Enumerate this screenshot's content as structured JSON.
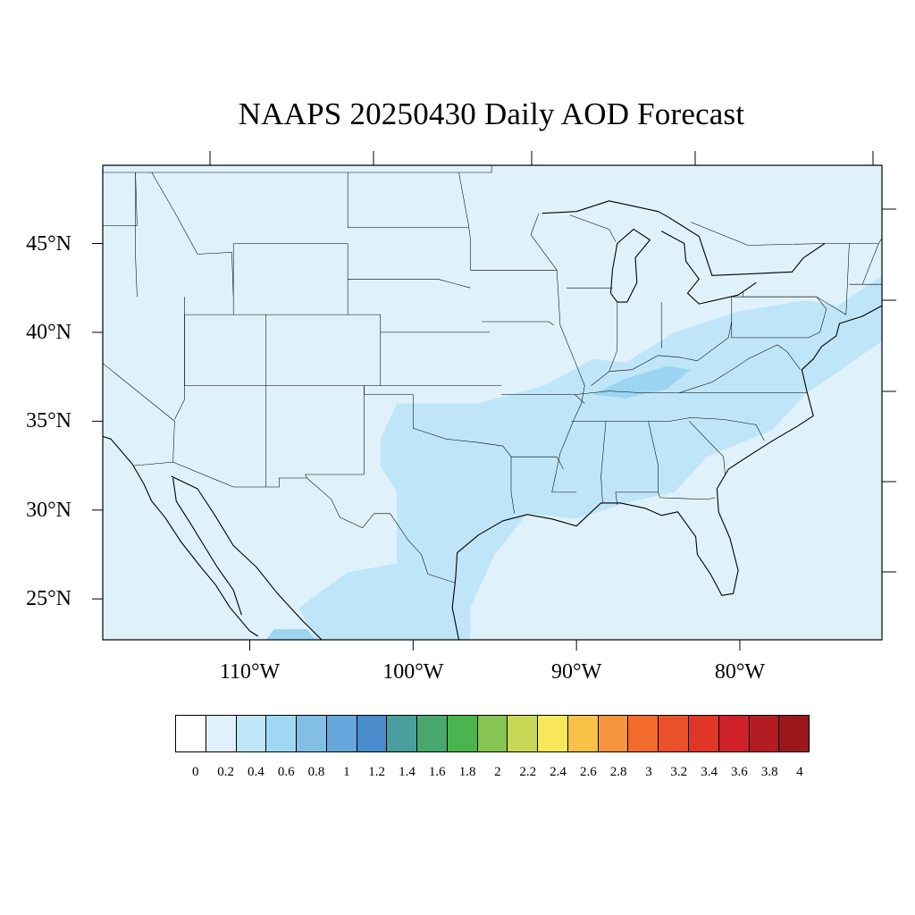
{
  "title": "NAAPS 20250430 Daily AOD Forecast",
  "map": {
    "extent": {
      "lon": [
        -119,
        -71.3
      ],
      "lat": [
        22.7,
        49.4
      ]
    },
    "lat_ticks": [
      {
        "lat": 45,
        "label": "45°N"
      },
      {
        "lat": 40,
        "label": "40°N"
      },
      {
        "lat": 35,
        "label": "35°N"
      },
      {
        "lat": 30,
        "label": "30°N"
      },
      {
        "lat": 25,
        "label": "25°N"
      }
    ],
    "lon_ticks": [
      {
        "lon": -110,
        "label": "110°W"
      },
      {
        "lon": -100,
        "label": "100°W"
      },
      {
        "lon": -90,
        "label": "90°W"
      },
      {
        "lon": -80,
        "label": "80°W"
      }
    ],
    "background_class_color": "#dff2fb",
    "aod_regions": [
      {
        "name": "plains-gulf",
        "aod_class": "0.2-0.4",
        "color": "#bfe6f8",
        "polygon": [
          [
            -101,
            36
          ],
          [
            -96,
            36
          ],
          [
            -92,
            37
          ],
          [
            -89,
            38.5
          ],
          [
            -87,
            38.3
          ],
          [
            -84,
            40
          ],
          [
            -80,
            41.2
          ],
          [
            -76,
            41.8
          ],
          [
            -74,
            41.5
          ],
          [
            -71.3,
            43.2
          ],
          [
            -71.3,
            39.5
          ],
          [
            -76,
            36.5
          ],
          [
            -78,
            34.5
          ],
          [
            -82,
            33
          ],
          [
            -84,
            31
          ],
          [
            -87,
            30.4
          ],
          [
            -90,
            29.5
          ],
          [
            -93,
            29.8
          ],
          [
            -95,
            27.5
          ],
          [
            -96.5,
            24.5
          ],
          [
            -96.5,
            22.7
          ],
          [
            -106,
            22.7
          ],
          [
            -107,
            24.5
          ],
          [
            -104,
            26.5
          ],
          [
            -101,
            27
          ],
          [
            -101,
            31
          ],
          [
            -102,
            32.5
          ],
          [
            -102,
            34
          ],
          [
            -101,
            36
          ]
        ]
      },
      {
        "name": "ohio-valley",
        "aod_class": "0.4-0.6",
        "color": "#9bd5f2",
        "polygon": [
          [
            -89,
            36.5
          ],
          [
            -87,
            37.4
          ],
          [
            -84.5,
            38.1
          ],
          [
            -83,
            37.9
          ],
          [
            -84.5,
            36.8
          ],
          [
            -87,
            36.3
          ],
          [
            -89,
            36.5
          ]
        ]
      },
      {
        "name": "mexico-south",
        "aod_class": "0.4-0.6",
        "color": "#9bd5f2",
        "polygon": [
          [
            -109,
            22.7
          ],
          [
            -106,
            22.7
          ],
          [
            -106.5,
            23.3
          ],
          [
            -108.5,
            23.3
          ],
          [
            -109,
            22.7
          ]
        ]
      }
    ]
  },
  "colorbar": {
    "labels": [
      "0",
      "0.2",
      "0.4",
      "0.6",
      "0.8",
      "1",
      "1.2",
      "1.4",
      "1.6",
      "1.8",
      "2",
      "2.2",
      "2.4",
      "2.6",
      "2.8",
      "3",
      "3.2",
      "3.4",
      "3.6",
      "3.8",
      "4"
    ],
    "colors": [
      "#ffffff",
      "#dff2fb",
      "#bfe6f8",
      "#a0d7f3",
      "#82bfe5",
      "#66a8dc",
      "#4a8ccc",
      "#4a9e9e",
      "#48a86e",
      "#4ab54c",
      "#86c553",
      "#c7d856",
      "#f7e85a",
      "#f8c148",
      "#f5963c",
      "#f26b2c",
      "#ea5029",
      "#e03628",
      "#d02029",
      "#b41c24",
      "#9a171b"
    ]
  },
  "chart_data": {
    "type": "heatmap",
    "title": "NAAPS 20250430 Daily AOD Forecast",
    "variable": "Daily AOD",
    "lon_range": [
      -119,
      -71.3
    ],
    "lat_range": [
      22.7,
      49.4
    ],
    "lat_tick_labels": [
      "45°N",
      "40°N",
      "35°N",
      "30°N",
      "25°N"
    ],
    "lon_tick_labels": [
      "110°W",
      "100°W",
      "90°W",
      "80°W"
    ],
    "colorbar_levels": [
      0,
      0.2,
      0.4,
      0.6,
      0.8,
      1,
      1.2,
      1.4,
      1.6,
      1.8,
      2,
      2.2,
      2.4,
      2.6,
      2.8,
      3,
      3.2,
      3.4,
      3.6,
      3.8,
      4
    ],
    "regions_aod": [
      {
        "region": "Western and northern US, Atlantic",
        "aod": "0.0-0.2"
      },
      {
        "region": "Southern Plains, Texas, Gulf Coast, Mid-Atlantic and Northeast coast",
        "aod": "0.2-0.4"
      },
      {
        "region": "Ohio Valley (Kentucky)",
        "aod": "0.4-0.6"
      }
    ]
  }
}
